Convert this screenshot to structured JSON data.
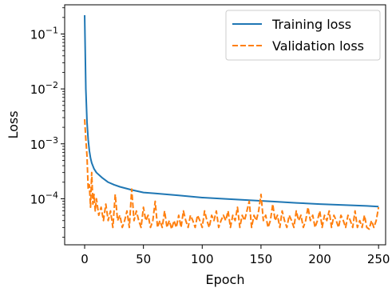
{
  "chart_data": {
    "type": "line",
    "title": "",
    "xlabel": "Epoch",
    "ylabel": "Loss",
    "xlim": [
      -17,
      256
    ],
    "ylim": [
      1.45e-05,
      0.34
    ],
    "yscale": "log",
    "grid": false,
    "legend_position": "top-right",
    "x_ticks": [
      {
        "value": 0,
        "label": "0"
      },
      {
        "value": 50,
        "label": "50"
      },
      {
        "value": 100,
        "label": "100"
      },
      {
        "value": 150,
        "label": "150"
      },
      {
        "value": 200,
        "label": "200"
      },
      {
        "value": 250,
        "label": "250"
      }
    ],
    "y_ticks": [
      {
        "value": 0.0001,
        "base": "10",
        "exp": "−4"
      },
      {
        "value": 0.001,
        "base": "10",
        "exp": "−3"
      },
      {
        "value": 0.01,
        "base": "10",
        "exp": "−2"
      },
      {
        "value": 0.1,
        "base": "10",
        "exp": "−1"
      }
    ],
    "series": [
      {
        "name": "Training loss",
        "color": "#1f77b4",
        "dash": "solid",
        "x": [
          0,
          1,
          2,
          3,
          4,
          5,
          6,
          8,
          10,
          15,
          20,
          25,
          30,
          40,
          50,
          60,
          70,
          80,
          90,
          100,
          120,
          140,
          160,
          180,
          200,
          220,
          240,
          250
        ],
        "y": [
          0.22,
          0.01,
          0.0025,
          0.0012,
          0.00075,
          0.00055,
          0.00045,
          0.00035,
          0.0003,
          0.00024,
          0.0002,
          0.00018,
          0.000165,
          0.000145,
          0.00013,
          0.000125,
          0.00012,
          0.000115,
          0.00011,
          0.000105,
          9.95e-05,
          9.4e-05,
          8.9e-05,
          8.4e-05,
          8e-05,
          7.7e-05,
          7.4e-05,
          7.2e-05
        ]
      },
      {
        "name": "Validation loss",
        "color": "#ff7f0e",
        "dash": "dashed",
        "x": [
          0,
          1,
          2,
          3,
          4,
          5,
          6,
          7,
          8,
          9,
          10,
          12,
          14,
          16,
          18,
          20,
          22,
          24,
          26,
          28,
          30,
          32,
          34,
          36,
          38,
          40,
          42,
          44,
          46,
          48,
          50,
          52,
          54,
          56,
          58,
          60,
          62,
          64,
          66,
          68,
          70,
          72,
          74,
          76,
          78,
          80,
          82,
          84,
          86,
          88,
          90,
          92,
          94,
          96,
          98,
          100,
          102,
          104,
          106,
          108,
          110,
          112,
          114,
          116,
          118,
          120,
          122,
          124,
          126,
          128,
          130,
          132,
          134,
          136,
          138,
          140,
          142,
          144,
          146,
          148,
          150,
          152,
          154,
          156,
          158,
          160,
          162,
          164,
          166,
          168,
          170,
          172,
          174,
          176,
          178,
          180,
          182,
          184,
          186,
          188,
          190,
          192,
          194,
          196,
          198,
          200,
          202,
          204,
          206,
          208,
          210,
          212,
          214,
          216,
          218,
          220,
          222,
          224,
          226,
          228,
          230,
          232,
          234,
          236,
          238,
          240,
          242,
          244,
          246,
          248,
          250
        ],
        "y": [
          0.0028,
          0.0012,
          0.0006,
          0.00015,
          0.00018,
          7e-05,
          0.0003,
          8e-05,
          0.00012,
          6e-05,
          0.0001,
          5e-05,
          7e-05,
          4e-05,
          8e-05,
          4e-05,
          6e-05,
          3e-05,
          0.00012,
          4e-05,
          5e-05,
          3e-05,
          4e-05,
          6e-05,
          3e-05,
          0.00015,
          4e-05,
          6e-05,
          4e-05,
          3e-05,
          7e-05,
          4e-05,
          5e-05,
          3e-05,
          4e-05,
          9e-05,
          3e-05,
          4e-05,
          3e-05,
          6e-05,
          3e-05,
          4e-05,
          2.8e-05,
          4e-05,
          3e-05,
          5e-05,
          3e-05,
          6e-05,
          4e-05,
          3e-05,
          5e-05,
          4e-05,
          3e-05,
          5e-05,
          4e-05,
          3e-05,
          6e-05,
          4e-05,
          3e-05,
          5e-05,
          4e-05,
          6e-05,
          3e-05,
          4e-05,
          5e-05,
          4e-05,
          6e-05,
          3e-05,
          5e-05,
          4e-05,
          7e-05,
          3e-05,
          5e-05,
          4e-05,
          6e-05,
          9e-05,
          3e-05,
          5e-05,
          4e-05,
          6e-05,
          0.00012,
          4e-05,
          5e-05,
          3e-05,
          4e-05,
          8e-05,
          4e-05,
          5e-05,
          3e-05,
          6e-05,
          4e-05,
          3e-05,
          5e-05,
          4e-05,
          3e-05,
          6e-05,
          4e-05,
          5e-05,
          3e-05,
          4e-05,
          7e-05,
          4e-05,
          5e-05,
          3e-05,
          4e-05,
          6e-05,
          3e-05,
          5e-05,
          4e-05,
          6e-05,
          3e-05,
          5e-05,
          4e-05,
          3e-05,
          5e-05,
          4e-05,
          3e-05,
          5e-05,
          4e-05,
          3e-05,
          6e-05,
          3e-05,
          4e-05,
          3e-05,
          5e-05,
          3e-05,
          2.8e-05,
          4e-05,
          3e-05,
          4e-05,
          7e-05
        ]
      }
    ]
  }
}
